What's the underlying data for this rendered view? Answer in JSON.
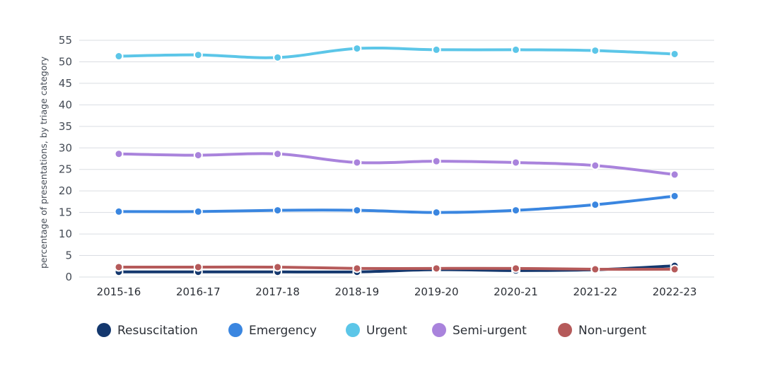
{
  "chart_data": {
    "type": "line",
    "ylabel": "percentage of presentations, by triage category",
    "xlabel": "",
    "ylim": [
      0,
      55
    ],
    "yticks": [
      0,
      5,
      10,
      15,
      20,
      25,
      30,
      35,
      40,
      45,
      50,
      55
    ],
    "grid": true,
    "legend_position": "bottom",
    "categories": [
      "2015-16",
      "2016-17",
      "2017-18",
      "2018-19",
      "2019-20",
      "2020-21",
      "2021-22",
      "2022-23"
    ],
    "series": [
      {
        "name": "Resuscitation",
        "color": "#14386e",
        "values": [
          1.2,
          1.2,
          1.2,
          1.2,
          1.7,
          1.5,
          1.7,
          2.6
        ]
      },
      {
        "name": "Emergency",
        "color": "#3a86e0",
        "values": [
          15.2,
          15.2,
          15.5,
          15.5,
          15.0,
          15.5,
          16.8,
          18.8
        ]
      },
      {
        "name": "Urgent",
        "color": "#5cc6e8",
        "values": [
          51.3,
          51.6,
          51.0,
          53.1,
          52.8,
          52.8,
          52.6,
          51.8
        ]
      },
      {
        "name": "Semi-urgent",
        "color": "#a983dc",
        "values": [
          28.6,
          28.3,
          28.6,
          26.6,
          26.9,
          26.6,
          25.9,
          23.8
        ]
      },
      {
        "name": "Non-urgent",
        "color": "#b55a5a",
        "values": [
          2.3,
          2.3,
          2.3,
          2.0,
          2.0,
          2.0,
          1.8,
          1.8
        ]
      }
    ]
  }
}
